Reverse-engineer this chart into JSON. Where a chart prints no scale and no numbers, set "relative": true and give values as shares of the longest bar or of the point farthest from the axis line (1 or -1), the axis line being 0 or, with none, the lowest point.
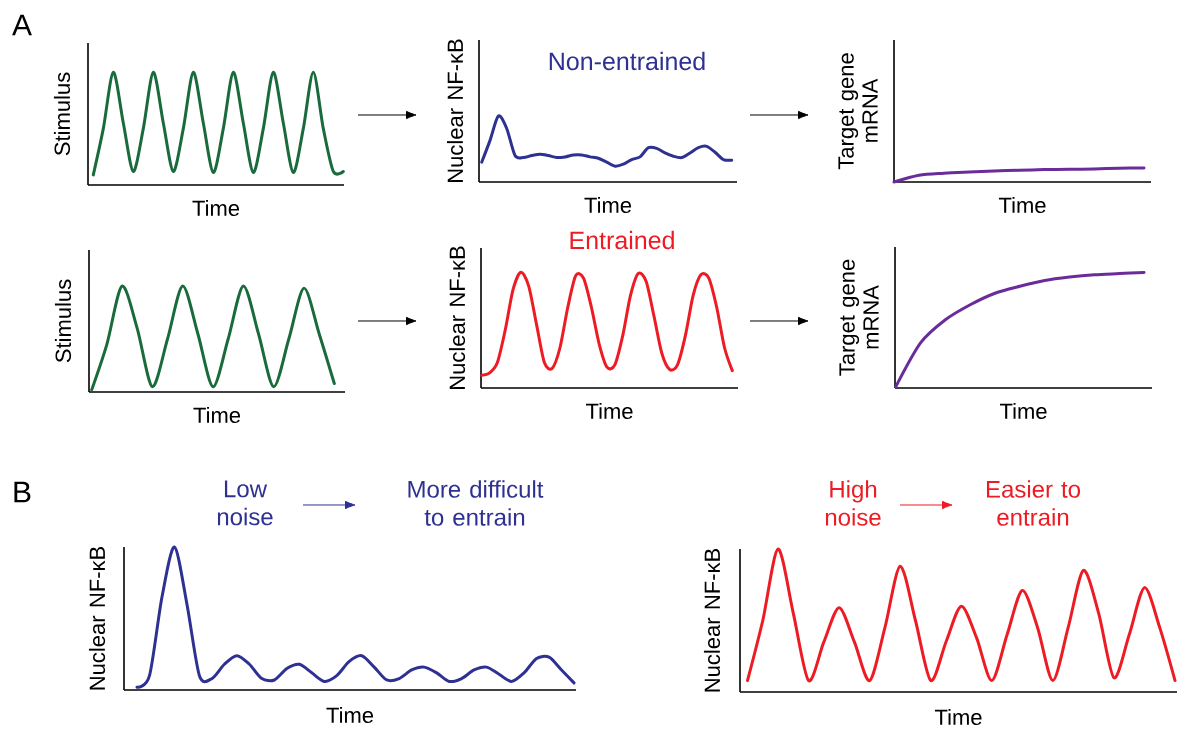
{
  "chart_data": [
    {
      "type": "line",
      "relative": true,
      "xlabel": "Time",
      "ylabel": "Stimulus",
      "annotations": [
        "A"
      ],
      "categories": [
        null,
        null,
        null,
        null,
        null,
        null,
        null,
        null,
        null,
        null,
        null,
        null,
        null,
        null,
        null,
        null,
        null,
        null,
        null,
        null,
        null,
        null,
        null,
        null,
        null,
        null
      ],
      "series": [
        {
          "color": "#1a6b3c",
          "values": [
            0.09,
            0.5,
            1.0,
            0.55,
            0.12,
            0.5,
            1.0,
            0.55,
            0.12,
            0.5,
            1.0,
            0.55,
            0.11,
            0.5,
            1.0,
            0.55,
            0.11,
            0.5,
            1.0,
            0.55,
            0.11,
            0.5,
            1.0,
            0.5,
            0.12,
            0.12
          ]
        }
      ]
    },
    {
      "type": "line",
      "relative": true,
      "title": "Non-entrained",
      "xlabel": "Time",
      "ylabel": "Nuclear NF-κB",
      "categories": [
        null,
        null,
        null,
        null,
        null,
        null,
        null,
        null,
        null,
        null,
        null,
        null,
        null,
        null,
        null,
        null,
        null,
        null,
        null,
        null,
        null,
        null,
        null,
        null,
        null,
        null,
        null,
        null,
        null,
        null,
        null
      ],
      "series": [
        {
          "color": "#2e3192",
          "values": [
            0.3,
            0.63,
            1.0,
            0.81,
            0.4,
            0.37,
            0.4,
            0.42,
            0.4,
            0.37,
            0.38,
            0.41,
            0.41,
            0.38,
            0.36,
            0.3,
            0.24,
            0.27,
            0.34,
            0.38,
            0.52,
            0.51,
            0.44,
            0.39,
            0.37,
            0.44,
            0.52,
            0.54,
            0.45,
            0.34,
            0.33
          ]
        }
      ]
    },
    {
      "type": "line",
      "relative": true,
      "xlabel": "Time",
      "ylabel": "Target gene mRNA",
      "categories": [
        null,
        null,
        null,
        null,
        null,
        null,
        null,
        null,
        null,
        null,
        null
      ],
      "series": [
        {
          "color": "#6a2c9a",
          "values": [
            0,
            0.48,
            0.62,
            0.71,
            0.79,
            0.83,
            0.88,
            0.9,
            0.93,
            0.98,
            1.0
          ]
        }
      ]
    },
    {
      "type": "line",
      "relative": true,
      "xlabel": "Time",
      "ylabel": "Stimulus",
      "categories": [
        null,
        null,
        null,
        null,
        null,
        null,
        null,
        null,
        null,
        null,
        null,
        null,
        null,
        null,
        null,
        null,
        null
      ],
      "series": [
        {
          "color": "#1a6b3c",
          "values": [
            0.02,
            0.45,
            1.0,
            0.6,
            0.05,
            0.5,
            1.0,
            0.55,
            0.05,
            0.5,
            1.0,
            0.55,
            0.05,
            0.5,
            0.98,
            0.55,
            0.08
          ]
        }
      ]
    },
    {
      "type": "line",
      "relative": true,
      "title": "Entrained",
      "xlabel": "Time",
      "ylabel": "Nuclear NF-κB",
      "categories": [
        null,
        null,
        null,
        null,
        null,
        null,
        null,
        null,
        null,
        null,
        null,
        null,
        null,
        null,
        null,
        null,
        null,
        null,
        null,
        null,
        null,
        null,
        null,
        null,
        null,
        null,
        null,
        null,
        null,
        null,
        null,
        null,
        null
      ],
      "series": [
        {
          "color": "#ed1c24",
          "values": [
            0.11,
            0.13,
            0.22,
            0.5,
            0.85,
            1.0,
            0.88,
            0.55,
            0.22,
            0.17,
            0.35,
            0.7,
            0.97,
            0.95,
            0.7,
            0.38,
            0.18,
            0.2,
            0.45,
            0.8,
            0.99,
            0.92,
            0.62,
            0.3,
            0.16,
            0.2,
            0.45,
            0.8,
            0.98,
            0.95,
            0.7,
            0.35,
            0.15
          ]
        }
      ]
    },
    {
      "type": "line",
      "relative": true,
      "xlabel": "Time",
      "ylabel": "Target gene mRNA",
      "categories": [
        null,
        null,
        null,
        null,
        null,
        null,
        null,
        null,
        null,
        null,
        null
      ],
      "series": [
        {
          "color": "#6a2c9a",
          "values": [
            0.01,
            0.39,
            0.59,
            0.72,
            0.82,
            0.88,
            0.93,
            0.96,
            0.98,
            0.99,
            1.0
          ]
        }
      ]
    },
    {
      "type": "line",
      "relative": true,
      "xlabel": "Time",
      "ylabel": "Nuclear NF-κB",
      "annotations": [
        "B",
        "Low noise",
        "More difficult to entrain"
      ],
      "categories": [
        null,
        null,
        null,
        null,
        null,
        null,
        null,
        null,
        null,
        null,
        null,
        null,
        null,
        null,
        null,
        null,
        null,
        null,
        null,
        null,
        null,
        null,
        null,
        null,
        null,
        null,
        null,
        null,
        null,
        null,
        null,
        null,
        null,
        null,
        null,
        null
      ],
      "series": [
        {
          "color": "#2e3192",
          "values": [
            0.02,
            0.1,
            0.65,
            1.0,
            0.6,
            0.1,
            0.08,
            0.18,
            0.24,
            0.18,
            0.08,
            0.07,
            0.15,
            0.18,
            0.12,
            0.06,
            0.1,
            0.2,
            0.24,
            0.16,
            0.07,
            0.08,
            0.14,
            0.16,
            0.12,
            0.06,
            0.08,
            0.14,
            0.16,
            0.11,
            0.06,
            0.12,
            0.22,
            0.23,
            0.14,
            0.05
          ]
        }
      ]
    },
    {
      "type": "line",
      "relative": true,
      "xlabel": "Time",
      "ylabel": "Nuclear NF-κB",
      "annotations": [
        "High noise",
        "Easier to entrain"
      ],
      "categories": [
        null,
        null,
        null,
        null,
        null,
        null,
        null,
        null,
        null,
        null,
        null,
        null,
        null,
        null,
        null,
        null,
        null,
        null,
        null,
        null,
        null,
        null,
        null,
        null,
        null,
        null,
        null,
        null,
        null
      ],
      "series": [
        {
          "color": "#ed1c24",
          "values": [
            0.08,
            0.5,
            1.0,
            0.55,
            0.08,
            0.35,
            0.59,
            0.35,
            0.08,
            0.45,
            0.88,
            0.5,
            0.08,
            0.35,
            0.6,
            0.38,
            0.08,
            0.4,
            0.71,
            0.45,
            0.08,
            0.45,
            0.85,
            0.55,
            0.1,
            0.4,
            0.73,
            0.45,
            0.08
          ]
        }
      ]
    }
  ]
}
